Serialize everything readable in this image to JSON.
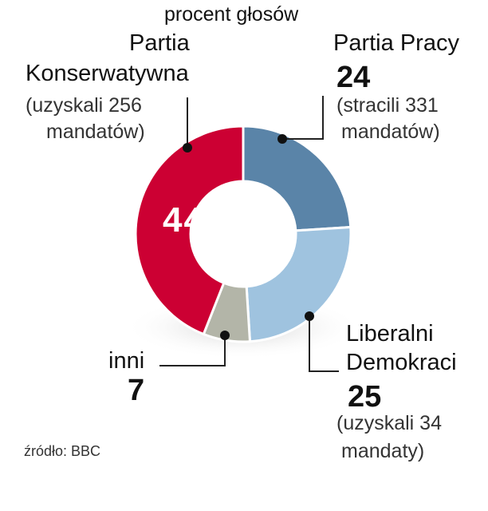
{
  "subtitle": "procent głosów",
  "source": "źródło: BBC",
  "labels": {
    "cons": {
      "name_line1": "Partia",
      "name_line2": "Konserwatywna",
      "note_line1": "(uzyskali 256",
      "note_line2": "mandatów)"
    },
    "lab": {
      "name": "Partia Pracy",
      "value": "24",
      "note_line1": "(stracili 331",
      "note_line2": "mandatów)"
    },
    "lib": {
      "name_line1": "Liberalni",
      "name_line2": "Demokraci",
      "value": "25",
      "note_line1": "(uzyskali 34",
      "note_line2": "mandaty)"
    },
    "oth": {
      "name": "inni",
      "value": "7"
    }
  },
  "chart_data": {
    "type": "pie",
    "title": "procent głosów",
    "donut": true,
    "slices": [
      {
        "label": "Partia Pracy",
        "value": 24,
        "color": "#5a84a8"
      },
      {
        "label": "Liberalni Demokraci",
        "value": 25,
        "color": "#9fc3df"
      },
      {
        "label": "inni",
        "value": 7,
        "color": "#b3b5a8"
      },
      {
        "label": "Partia Konserwatywna",
        "value": 44,
        "color": "#cc0033"
      }
    ],
    "inner_label": "44"
  }
}
